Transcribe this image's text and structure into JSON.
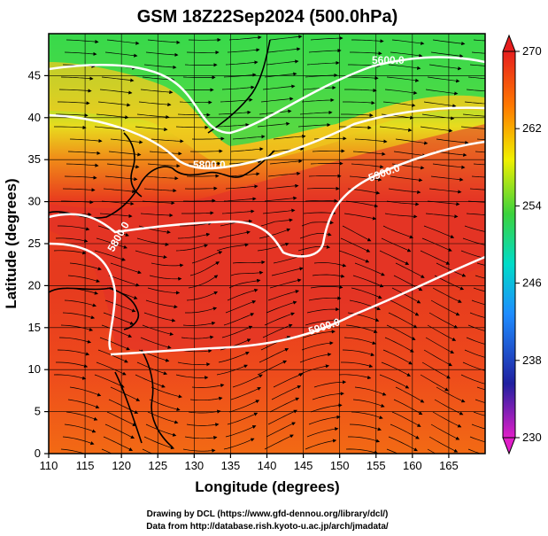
{
  "title": "GSM 18Z22Sep2024 (500.0hPa)",
  "x_axis": {
    "label": "Longitude (degrees)",
    "range": [
      110,
      170
    ],
    "ticks": [
      "110",
      "115",
      "120",
      "125",
      "130",
      "135",
      "140",
      "145",
      "150",
      "155",
      "160",
      "165"
    ]
  },
  "y_axis": {
    "label": "Latitude (degrees)",
    "range": [
      0,
      50
    ],
    "ticks": [
      "0",
      "5",
      "10",
      "15",
      "20",
      "25",
      "30",
      "35",
      "40",
      "45"
    ]
  },
  "colorbar": {
    "range": [
      230,
      270
    ],
    "ticks": [
      "230",
      "238",
      "246",
      "254",
      "262",
      "270"
    ],
    "colors": [
      "#e01ec8",
      "#2020a0",
      "#1e8cff",
      "#00dcc8",
      "#3cd23c",
      "#f0f000",
      "#ff7800",
      "#e61e1e"
    ]
  },
  "contours": [
    {
      "label": "5600.0"
    },
    {
      "label": "5800.0"
    },
    {
      "label": "5900.0"
    },
    {
      "label": "5800.0"
    },
    {
      "label": "5900.0"
    }
  ],
  "credits": {
    "line1": "Drawing by DCL (https://www.gfd-dennou.org/library/dcl/)",
    "line2": "Data from http://database.rish.kyoto-u.ac.jp/arch/jmadata/"
  }
}
